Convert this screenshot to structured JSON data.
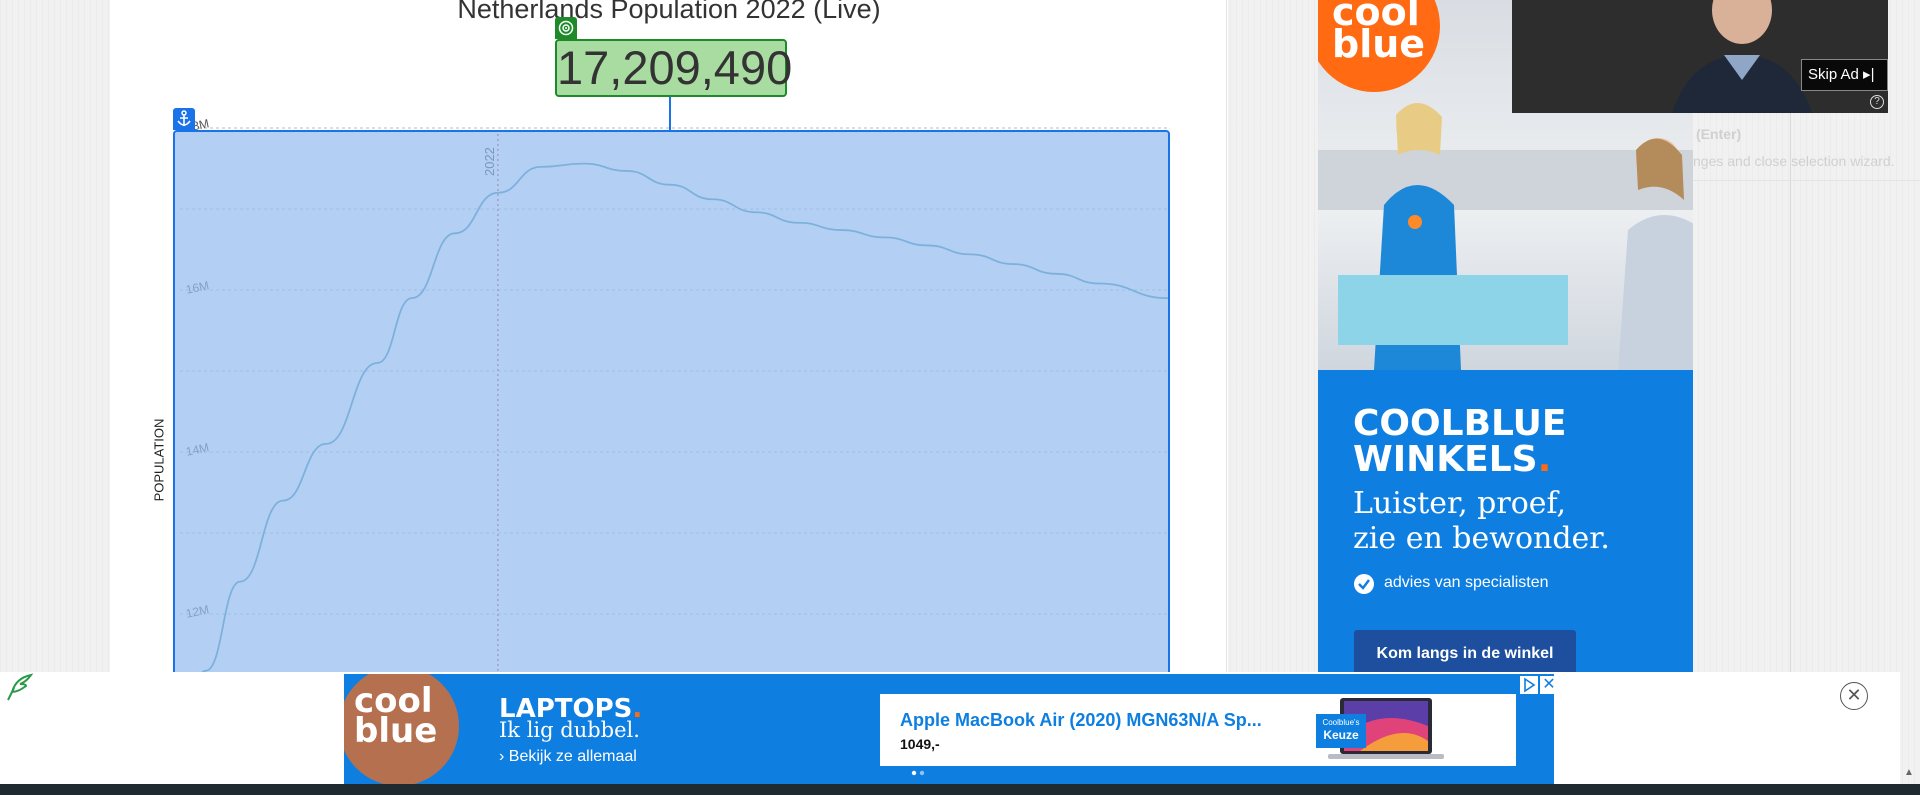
{
  "page": {
    "chart_title": "Netherlands Population 2022 (Live)",
    "live_counter": "17,209,490",
    "y_axis_title": "POPULATION"
  },
  "chart_data": {
    "type": "line",
    "title": "Netherlands Population 2022 (Live)",
    "ylabel": "POPULATION",
    "y_ticks": [
      "18M",
      "16M",
      "14M",
      "12M"
    ],
    "y_tick_values": [
      18000000,
      16000000,
      14000000,
      12000000
    ],
    "ylim": [
      10500000,
      18000000
    ],
    "marker_label": "2022",
    "marker_x": 2022,
    "xlim": [
      1985,
      2100
    ],
    "grid": true,
    "series": [
      {
        "color": "#3f8fa8",
        "x": [
          1985,
          1988,
          1992,
          1997,
          2002,
          2008,
          2012,
          2017,
          2022,
          2027,
          2032,
          2037,
          2042,
          2047,
          2052,
          2057,
          2062,
          2067,
          2072,
          2077,
          2082,
          2087,
          2092,
          2100
        ],
        "y": [
          10550000,
          11300000,
          12400000,
          13400000,
          14100000,
          15100000,
          15900000,
          16700000,
          17200000,
          17520000,
          17560000,
          17470000,
          17300000,
          17120000,
          16960000,
          16830000,
          16740000,
          16650000,
          16550000,
          16440000,
          16320000,
          16200000,
          16080000,
          15900000
        ]
      }
    ]
  },
  "ad_right": {
    "brand": "cool blue",
    "headline_line1": "COOLBLUE",
    "headline_line2": "WINKELS",
    "headline_dot": ".",
    "tagline_line1": "Luister, proef,",
    "tagline_line2": "zie en bewonder.",
    "check_text": "advies van specialisten",
    "cta": "Kom langs in de winkel"
  },
  "video_ad": {
    "skip_label": "Skip Ad",
    "skip_icon": "▸|",
    "help_icon": "?"
  },
  "hints": {
    "enter": "(Enter)",
    "desc": "nges and close selection wizard."
  },
  "banner": {
    "brand": "cool blue",
    "headline": "LAPTOPS",
    "headline_dot": ".",
    "tagline": "Ik lig dubbel.",
    "link": "› Bekijk ze allemaal",
    "product_title": "Apple MacBook Air (2020) MGN63N/A Sp...",
    "product_price": "1049,-",
    "badge_small": "Coolblue's",
    "badge_big": "Keuze",
    "close_x": "✕",
    "close_circle": "✕"
  },
  "colors": {
    "coolblue_blue": "#0e7fe0",
    "coolblue_orange": "#ff6a13",
    "overlay_border": "#1a73e8",
    "counter_border": "#1e8a2a"
  }
}
